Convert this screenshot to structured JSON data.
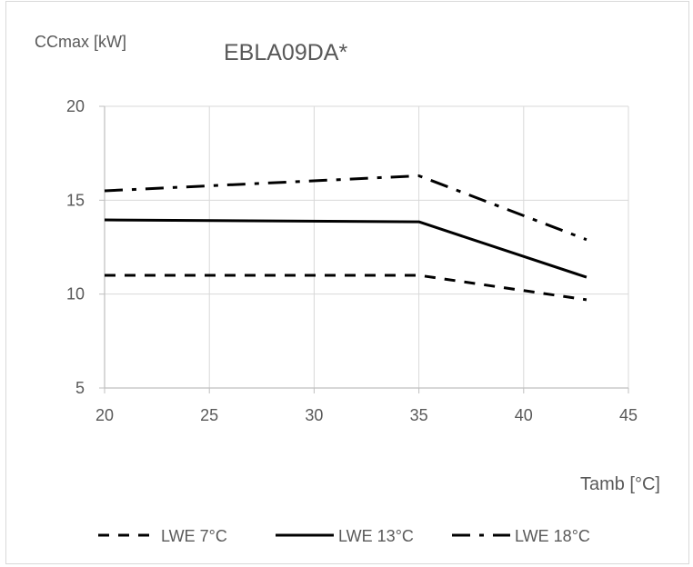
{
  "chart_data": {
    "type": "line",
    "title": "EBLA09DA*",
    "ylabel": "CCmax [kW]",
    "xlabel": "Tamb [°C]",
    "xlim": [
      20,
      45
    ],
    "ylim": [
      5,
      20
    ],
    "xticks": [
      20,
      25,
      30,
      35,
      40,
      45
    ],
    "yticks": [
      5,
      10,
      15,
      20
    ],
    "grid": true,
    "legend_position": "bottom",
    "series": [
      {
        "name": "LWE 7°C",
        "style": "dashed",
        "color": "#000000",
        "x": [
          20,
          35,
          43
        ],
        "y": [
          11.0,
          11.0,
          9.7
        ]
      },
      {
        "name": "LWE 13°C",
        "style": "solid",
        "color": "#000000",
        "x": [
          20,
          35,
          43
        ],
        "y": [
          13.95,
          13.85,
          10.9
        ]
      },
      {
        "name": "LWE 18°C",
        "style": "dash-dot",
        "color": "#000000",
        "x": [
          20,
          35,
          43
        ],
        "y": [
          15.5,
          16.3,
          12.9
        ]
      }
    ]
  }
}
